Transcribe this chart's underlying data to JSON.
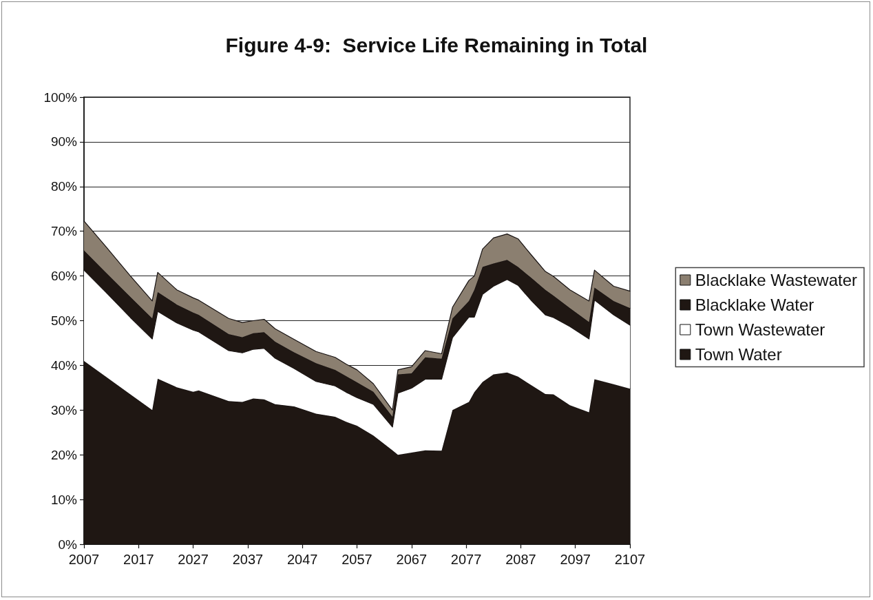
{
  "chart_data": {
    "type": "area",
    "title": "Figure 4-9:  Service Life Remaining in Total",
    "stacked": true,
    "x": [
      2007,
      2011,
      2015.5,
      2019.5,
      2020.5,
      2024,
      2027,
      2028,
      2033.5,
      2036,
      2038,
      2040,
      2042,
      2045.5,
      2049.5,
      2053,
      2055,
      2057,
      2060,
      2063.5,
      2064.5,
      2067,
      2069.5,
      2072.5,
      2074.5,
      2077.5,
      2078.5,
      2080,
      2082,
      2084.5,
      2086.5,
      2089,
      2091.5,
      2093,
      2096,
      2099.5,
      2100.5,
      2104,
      2107
    ],
    "xlim": [
      2007,
      2107
    ],
    "xticks": [
      2007,
      2017,
      2027,
      2037,
      2047,
      2057,
      2067,
      2077,
      2087,
      2097,
      2107
    ],
    "ylim": [
      0,
      100
    ],
    "yticks": [
      {
        "value": 0,
        "label": "0%"
      },
      {
        "value": 10,
        "label": "10%"
      },
      {
        "value": 20,
        "label": "20%"
      },
      {
        "value": 30,
        "label": "30%"
      },
      {
        "value": 40,
        "label": "40%"
      },
      {
        "value": 50,
        "label": "50%"
      },
      {
        "value": 60,
        "label": "60%"
      },
      {
        "value": 70,
        "label": "70%"
      },
      {
        "value": 80,
        "label": "80%"
      },
      {
        "value": 90,
        "label": "90%"
      },
      {
        "value": 100,
        "label": "100%"
      }
    ],
    "grid": "y",
    "legend": "right",
    "series": [
      {
        "name": "Town Water",
        "color": "#1f1713",
        "values": [
          41,
          37.5,
          33.5,
          30,
          37,
          35.1,
          34.1,
          34.4,
          32,
          31.8,
          32.6,
          32.4,
          31.3,
          30.8,
          29.2,
          28.5,
          27.4,
          26.5,
          24.3,
          21,
          20,
          20.5,
          21,
          20.9,
          30,
          31.8,
          34,
          36.3,
          38,
          38.4,
          37.5,
          35.5,
          33.6,
          33.5,
          31.1,
          29.5,
          36.9,
          35.8,
          34.8
        ]
      },
      {
        "name": "Town Wastewater",
        "color": "#ffffff",
        "values": [
          20.3,
          18.9,
          17.2,
          15.9,
          15.1,
          14.4,
          13.8,
          13.1,
          11.3,
          11,
          11,
          11.4,
          10.3,
          8.5,
          7.2,
          6.9,
          6.6,
          6.3,
          7,
          5.2,
          13.8,
          14.4,
          15.9,
          16,
          16.2,
          19,
          16.8,
          19.6,
          19.7,
          20.8,
          20.4,
          18.9,
          17.7,
          17.2,
          17.6,
          16.4,
          17.7,
          15.5,
          14.2
        ]
      },
      {
        "name": "Blacklake Water",
        "color": "#1f1713",
        "values": [
          4.4,
          4.4,
          4.6,
          4.6,
          4.3,
          4.1,
          3.9,
          3.8,
          3.7,
          3.5,
          3.6,
          3.6,
          3.7,
          3.6,
          4.1,
          3.6,
          3.6,
          3.4,
          2.8,
          2.3,
          4.2,
          3.3,
          4.9,
          4.6,
          4.3,
          3.6,
          6.1,
          6.1,
          5.1,
          4.4,
          4.1,
          5.1,
          5.6,
          4.9,
          4.1,
          3.8,
          2.8,
          3.1,
          3.8
        ]
      },
      {
        "name": "Blacklake Wastewater",
        "color": "#8b7f70",
        "values": [
          6.6,
          5.8,
          4.7,
          3.9,
          4.4,
          3.3,
          3.3,
          3.3,
          3.5,
          3.3,
          2.8,
          2.9,
          2.9,
          2.9,
          2.6,
          2.8,
          2.7,
          2.8,
          1.8,
          1.5,
          1,
          1.5,
          1.5,
          1.1,
          2.5,
          4.6,
          3.1,
          4,
          5.7,
          5.8,
          6.3,
          5.1,
          4.1,
          4.3,
          4.1,
          4.7,
          3.9,
          3.3,
          3.8
        ]
      }
    ]
  }
}
